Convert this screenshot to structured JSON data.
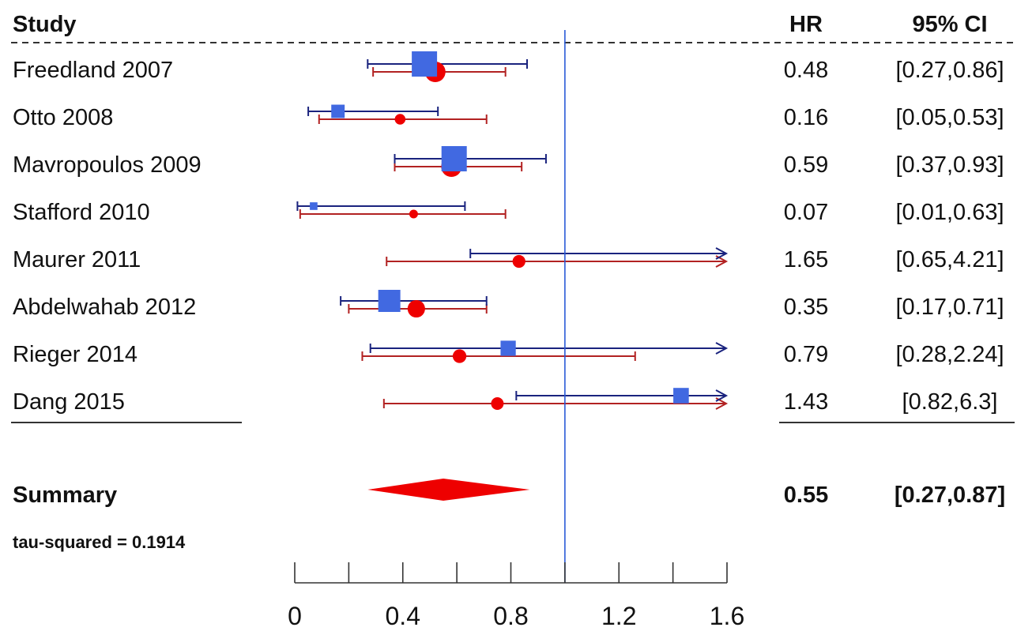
{
  "chart_data": {
    "type": "forest",
    "headers": {
      "study": "Study",
      "hr": "HR",
      "ci": "95% CI"
    },
    "x_ticks": [
      "0",
      "0.4",
      "0.8",
      "1.2",
      "1.6"
    ],
    "x_range": [
      0,
      1.6
    ],
    "reference_line": 1.0,
    "studies": [
      {
        "name": "Freedland 2007",
        "hr": "0.48",
        "ci": "[0.27,0.86]",
        "blue": {
          "est": 0.48,
          "lo": 0.27,
          "hi": 0.86
        },
        "red": {
          "est": 0.52,
          "lo": 0.29,
          "hi": 0.78
        }
      },
      {
        "name": "Otto 2008",
        "hr": "0.16",
        "ci": "[0.05,0.53]",
        "blue": {
          "est": 0.16,
          "lo": 0.05,
          "hi": 0.53
        },
        "red": {
          "est": 0.39,
          "lo": 0.09,
          "hi": 0.71
        }
      },
      {
        "name": "Mavropoulos 2009",
        "hr": "0.59",
        "ci": "[0.37,0.93]",
        "blue": {
          "est": 0.59,
          "lo": 0.37,
          "hi": 0.93
        },
        "red": {
          "est": 0.58,
          "lo": 0.37,
          "hi": 0.84
        }
      },
      {
        "name": "Stafford 2010",
        "hr": "0.07",
        "ci": "[0.01,0.63]",
        "blue": {
          "est": 0.07,
          "lo": 0.01,
          "hi": 0.63
        },
        "red": {
          "est": 0.44,
          "lo": 0.02,
          "hi": 0.78
        }
      },
      {
        "name": "Maurer 2011",
        "hr": "1.65",
        "ci": "[0.65,4.21]",
        "blue": {
          "est": 1.65,
          "lo": 0.65,
          "hi": 4.21
        },
        "red": {
          "est": 0.83,
          "lo": 0.34,
          "hi": 1.9
        }
      },
      {
        "name": "Abdelwahab 2012",
        "hr": "0.35",
        "ci": "[0.17,0.71]",
        "blue": {
          "est": 0.35,
          "lo": 0.17,
          "hi": 0.71
        },
        "red": {
          "est": 0.45,
          "lo": 0.2,
          "hi": 0.71
        }
      },
      {
        "name": "Rieger 2014",
        "hr": "0.79",
        "ci": "[0.28,2.24]",
        "blue": {
          "est": 0.79,
          "lo": 0.28,
          "hi": 2.24
        },
        "red": {
          "est": 0.61,
          "lo": 0.25,
          "hi": 1.26
        }
      },
      {
        "name": "Dang 2015",
        "hr": "1.43",
        "ci": "[0.82,6.3]",
        "blue": {
          "est": 1.43,
          "lo": 0.82,
          "hi": 6.3
        },
        "red": {
          "est": 0.75,
          "lo": 0.33,
          "hi": 1.9
        }
      }
    ],
    "summary": {
      "label": "Summary",
      "hr": "0.55",
      "ci": "[0.27,0.87]",
      "est": 0.55,
      "lo": 0.27,
      "hi": 0.87
    },
    "tau_label": "tau-squared = 0.1914",
    "colors": {
      "blue_marker": "#4169e1",
      "blue_line": "#1a237e",
      "red_marker": "#ee0000",
      "red_line": "#b22222",
      "ref_line": "#2a5bd7"
    }
  }
}
